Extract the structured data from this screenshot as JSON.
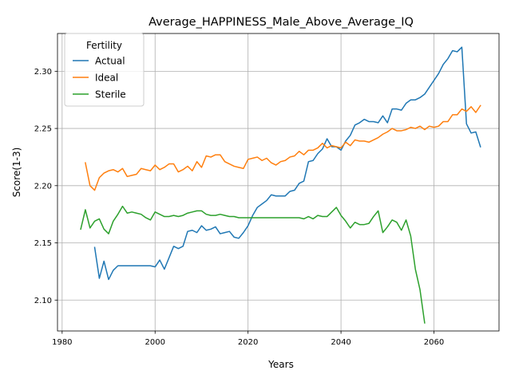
{
  "chart_data": {
    "type": "line",
    "title": "Average_HAPPINESS_Male_Above_Average_IQ",
    "xlabel": "Years",
    "ylabel": "Score(1-3)",
    "xlim": [
      1979,
      2074
    ],
    "ylim": [
      2.073,
      2.333
    ],
    "xticks": [
      1980,
      2000,
      2020,
      2040,
      2060
    ],
    "yticks": [
      2.1,
      2.15,
      2.2,
      2.25,
      2.3
    ],
    "ytick_labels": [
      "2.10",
      "2.15",
      "2.20",
      "2.25",
      "2.30"
    ],
    "grid": true,
    "legend": {
      "title": "Fertility",
      "placement": "top-left"
    },
    "series": [
      {
        "name": "Actual",
        "color": "#1f77b4",
        "x": [
          1987,
          1988,
          1989,
          1990,
          1991,
          1992,
          1993,
          1994,
          1995,
          1996,
          1997,
          1998,
          1999,
          2000,
          2001,
          2002,
          2003,
          2004,
          2005,
          2006,
          2007,
          2008,
          2009,
          2010,
          2011,
          2012,
          2013,
          2014,
          2015,
          2016,
          2017,
          2018,
          2019,
          2020,
          2021,
          2022,
          2023,
          2024,
          2025,
          2026,
          2027,
          2028,
          2029,
          2030,
          2031,
          2032,
          2033,
          2034,
          2035,
          2036,
          2037,
          2038,
          2039,
          2040,
          2041,
          2042,
          2043,
          2044,
          2045,
          2046,
          2047,
          2048,
          2049,
          2050,
          2051,
          2052,
          2053,
          2054,
          2055,
          2056,
          2057,
          2058,
          2059,
          2060,
          2061,
          2062,
          2063,
          2064,
          2065,
          2066,
          2067,
          2068,
          2069,
          2070
        ],
        "y": [
          2.146,
          2.119,
          2.134,
          2.118,
          2.126,
          2.13,
          2.13,
          2.13,
          2.13,
          2.13,
          2.13,
          2.13,
          2.13,
          2.129,
          2.135,
          2.127,
          2.137,
          2.147,
          2.145,
          2.147,
          2.16,
          2.161,
          2.159,
          2.165,
          2.161,
          2.162,
          2.164,
          2.158,
          2.159,
          2.16,
          2.155,
          2.154,
          2.159,
          2.165,
          2.174,
          2.181,
          2.184,
          2.187,
          2.192,
          2.191,
          2.191,
          2.191,
          2.195,
          2.196,
          2.202,
          2.204,
          2.221,
          2.222,
          2.228,
          2.232,
          2.241,
          2.234,
          2.234,
          2.231,
          2.239,
          2.244,
          2.253,
          2.255,
          2.258,
          2.256,
          2.256,
          2.255,
          2.261,
          2.255,
          2.267,
          2.267,
          2.266,
          2.272,
          2.275,
          2.275,
          2.277,
          2.28,
          2.286,
          2.292,
          2.298,
          2.306,
          2.311,
          2.318,
          2.317,
          2.321,
          2.254,
          2.246,
          2.247,
          2.234
        ]
      },
      {
        "name": "Ideal",
        "color": "#ff7f0e",
        "x": [
          1985,
          1986,
          1987,
          1988,
          1989,
          1990,
          1991,
          1992,
          1993,
          1994,
          1995,
          1996,
          1997,
          1998,
          1999,
          2000,
          2001,
          2002,
          2003,
          2004,
          2005,
          2006,
          2007,
          2008,
          2009,
          2010,
          2011,
          2012,
          2013,
          2014,
          2015,
          2016,
          2017,
          2018,
          2019,
          2020,
          2021,
          2022,
          2023,
          2024,
          2025,
          2026,
          2027,
          2028,
          2029,
          2030,
          2031,
          2032,
          2033,
          2034,
          2035,
          2036,
          2037,
          2038,
          2039,
          2040,
          2041,
          2042,
          2043,
          2044,
          2045,
          2046,
          2047,
          2048,
          2049,
          2050,
          2051,
          2052,
          2053,
          2054,
          2055,
          2056,
          2057,
          2058,
          2059,
          2060,
          2061,
          2062,
          2063,
          2064,
          2065,
          2066,
          2067,
          2068,
          2069,
          2070
        ],
        "y": [
          2.22,
          2.2,
          2.196,
          2.207,
          2.211,
          2.213,
          2.214,
          2.212,
          2.215,
          2.208,
          2.209,
          2.21,
          2.215,
          2.214,
          2.213,
          2.218,
          2.214,
          2.216,
          2.219,
          2.219,
          2.212,
          2.214,
          2.217,
          2.213,
          2.221,
          2.216,
          2.226,
          2.225,
          2.227,
          2.227,
          2.221,
          2.219,
          2.217,
          2.216,
          2.215,
          2.223,
          2.224,
          2.225,
          2.222,
          2.224,
          2.22,
          2.218,
          2.221,
          2.222,
          2.225,
          2.226,
          2.23,
          2.227,
          2.231,
          2.231,
          2.233,
          2.237,
          2.233,
          2.235,
          2.234,
          2.233,
          2.238,
          2.235,
          2.24,
          2.239,
          2.239,
          2.238,
          2.24,
          2.242,
          2.245,
          2.247,
          2.25,
          2.248,
          2.248,
          2.249,
          2.251,
          2.25,
          2.252,
          2.249,
          2.252,
          2.251,
          2.252,
          2.256,
          2.256,
          2.262,
          2.262,
          2.267,
          2.265,
          2.269,
          2.264,
          2.27
        ]
      },
      {
        "name": "Sterile",
        "color": "#2ca02c",
        "x": [
          1984,
          1985,
          1986,
          1987,
          1988,
          1989,
          1990,
          1991,
          1992,
          1993,
          1994,
          1995,
          1996,
          1997,
          1998,
          1999,
          2000,
          2001,
          2002,
          2003,
          2004,
          2005,
          2006,
          2007,
          2008,
          2009,
          2010,
          2011,
          2012,
          2013,
          2014,
          2015,
          2016,
          2017,
          2018,
          2019,
          2020,
          2021,
          2022,
          2023,
          2024,
          2025,
          2026,
          2027,
          2028,
          2029,
          2030,
          2031,
          2032,
          2033,
          2034,
          2035,
          2036,
          2037,
          2038,
          2039,
          2040,
          2041,
          2042,
          2043,
          2044,
          2045,
          2046,
          2047,
          2048,
          2049,
          2050,
          2051,
          2052,
          2053,
          2054,
          2055,
          2056,
          2057,
          2058
        ],
        "y": [
          2.162,
          2.179,
          2.163,
          2.169,
          2.171,
          2.162,
          2.158,
          2.169,
          2.175,
          2.182,
          2.176,
          2.177,
          2.176,
          2.175,
          2.172,
          2.17,
          2.177,
          2.175,
          2.173,
          2.173,
          2.174,
          2.173,
          2.174,
          2.176,
          2.177,
          2.178,
          2.178,
          2.175,
          2.174,
          2.174,
          2.175,
          2.174,
          2.173,
          2.173,
          2.172,
          2.172,
          2.172,
          2.172,
          2.172,
          2.172,
          2.172,
          2.172,
          2.172,
          2.172,
          2.172,
          2.172,
          2.172,
          2.172,
          2.171,
          2.173,
          2.171,
          2.174,
          2.173,
          2.173,
          2.177,
          2.181,
          2.174,
          2.169,
          2.163,
          2.168,
          2.166,
          2.166,
          2.167,
          2.173,
          2.178,
          2.159,
          2.164,
          2.17,
          2.168,
          2.161,
          2.17,
          2.156,
          2.127,
          2.109,
          2.08
        ]
      }
    ]
  }
}
